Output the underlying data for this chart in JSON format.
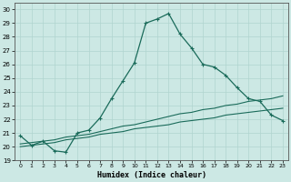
{
  "xlabel": "Humidex (Indice chaleur)",
  "bg_color": "#cce8e4",
  "grid_color": "#b0d4cf",
  "line_color": "#1a6b5a",
  "xlim": [
    -0.5,
    23.5
  ],
  "ylim": [
    19.0,
    30.5
  ],
  "xticks": [
    0,
    1,
    2,
    3,
    4,
    5,
    6,
    7,
    8,
    9,
    10,
    11,
    12,
    13,
    14,
    15,
    16,
    17,
    18,
    19,
    20,
    21,
    22,
    23
  ],
  "yticks": [
    19,
    20,
    21,
    22,
    23,
    24,
    25,
    26,
    27,
    28,
    29,
    30
  ],
  "series1_x": [
    0,
    1,
    2,
    3,
    4,
    5,
    6,
    7,
    8,
    9,
    10,
    11,
    12,
    13,
    14,
    15,
    16,
    17,
    18,
    19,
    20,
    21,
    22,
    23
  ],
  "series1_y": [
    20.8,
    20.1,
    20.4,
    19.7,
    19.6,
    21.0,
    21.2,
    22.1,
    23.5,
    24.8,
    26.1,
    29.0,
    29.3,
    29.7,
    28.2,
    27.2,
    26.0,
    25.8,
    25.2,
    24.3,
    23.5,
    23.3,
    22.3,
    21.9
  ],
  "series2_x": [
    0,
    1,
    2,
    3,
    4,
    5,
    6,
    7,
    8,
    9,
    10,
    11,
    12,
    13,
    14,
    15,
    16,
    17,
    18,
    19,
    20,
    21,
    22,
    23
  ],
  "series2_y": [
    20.2,
    20.3,
    20.4,
    20.5,
    20.7,
    20.8,
    20.9,
    21.1,
    21.3,
    21.5,
    21.6,
    21.8,
    22.0,
    22.2,
    22.4,
    22.5,
    22.7,
    22.8,
    23.0,
    23.1,
    23.3,
    23.4,
    23.5,
    23.7
  ],
  "series3_x": [
    0,
    1,
    2,
    3,
    4,
    5,
    6,
    7,
    8,
    9,
    10,
    11,
    12,
    13,
    14,
    15,
    16,
    17,
    18,
    19,
    20,
    21,
    22,
    23
  ],
  "series3_y": [
    20.0,
    20.1,
    20.2,
    20.3,
    20.5,
    20.6,
    20.7,
    20.9,
    21.0,
    21.1,
    21.3,
    21.4,
    21.5,
    21.6,
    21.8,
    21.9,
    22.0,
    22.1,
    22.3,
    22.4,
    22.5,
    22.6,
    22.7,
    22.8
  ]
}
